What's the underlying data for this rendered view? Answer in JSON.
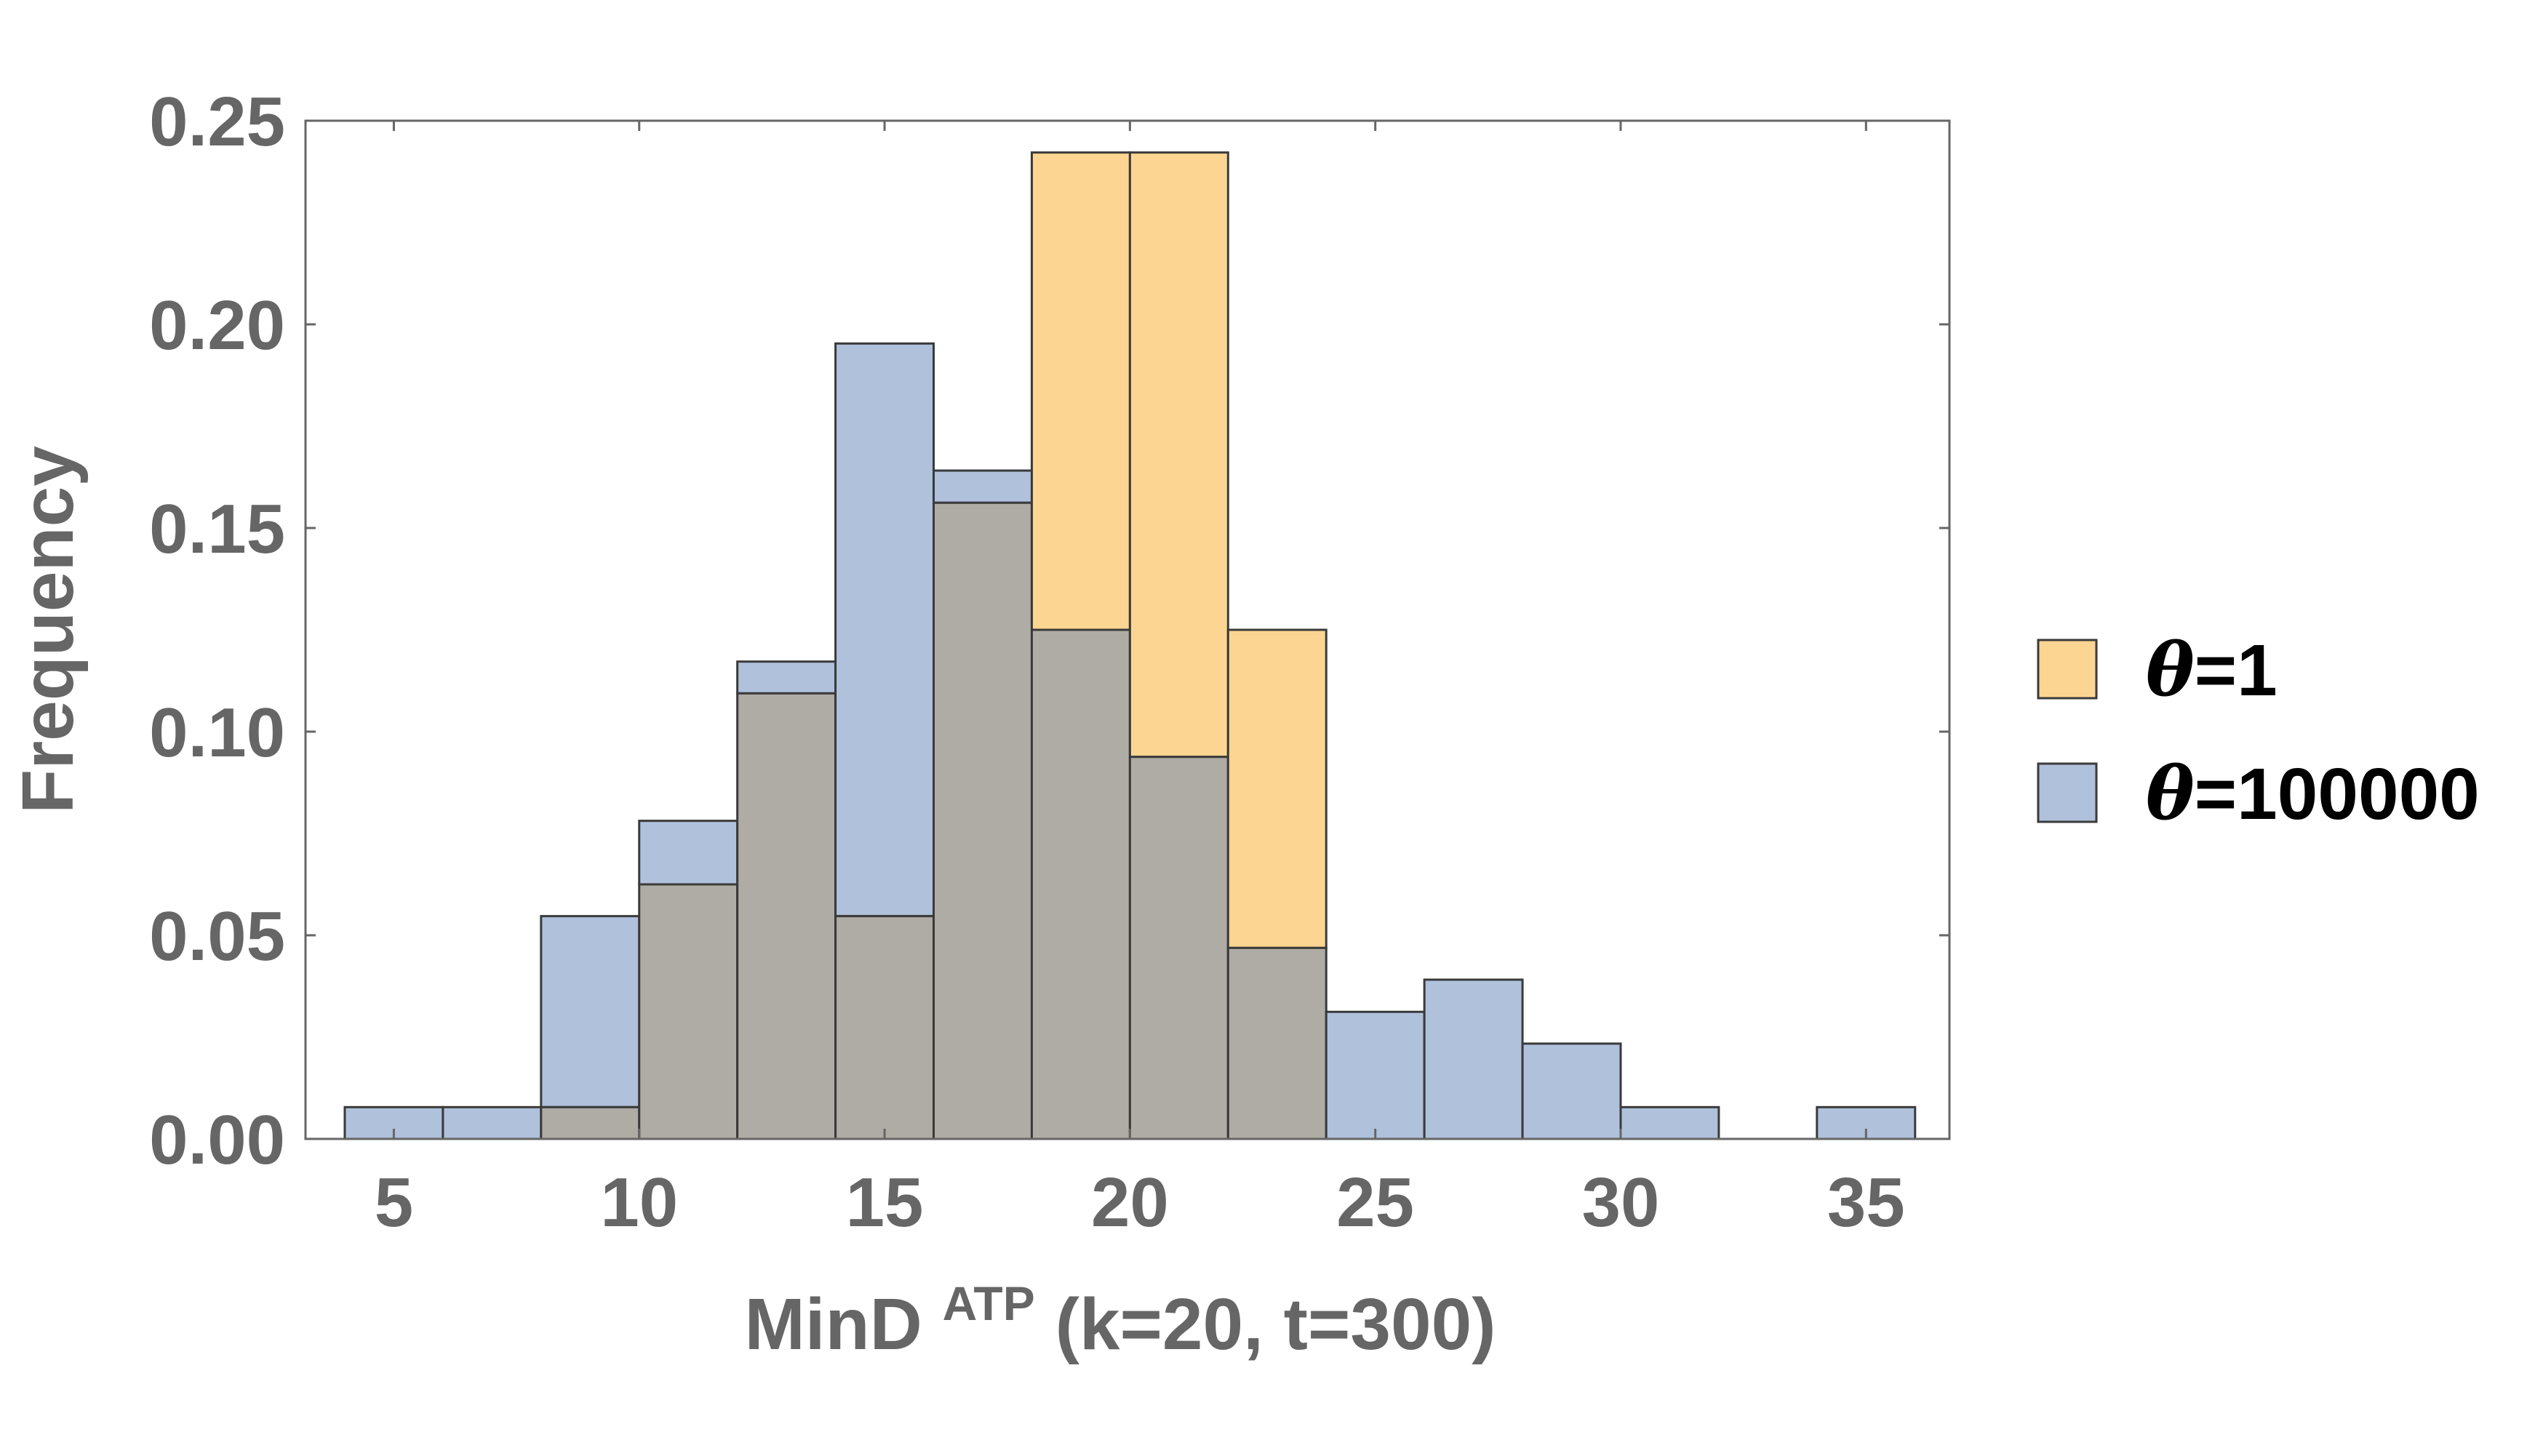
{
  "chart_data": {
    "type": "bar",
    "subtype": "overlapping-histogram",
    "xlabel": {
      "main": "MinD",
      "sup": "ATP",
      "rest": "(k=20, t=300)"
    },
    "ylabel": "Frequency",
    "xlim": [
      3.2,
      36.7
    ],
    "ylim": [
      0,
      0.25
    ],
    "xticks": [
      "5",
      "10",
      "15",
      "20",
      "25",
      "30",
      "35"
    ],
    "yticks": [
      "0.00",
      "0.05",
      "0.10",
      "0.15",
      "0.20",
      "0.25"
    ],
    "bin_edges": [
      4,
      6,
      8,
      10,
      12,
      14,
      16,
      18,
      20,
      22,
      24,
      26,
      28,
      30,
      32,
      34,
      36
    ],
    "series": [
      {
        "name": "θ=1",
        "legend_symbol": "θ",
        "legend_value": "=1",
        "color": "#fdd592",
        "values": [
          0,
          0,
          0.0078,
          0.0625,
          0.1094,
          0.0547,
          0.1562,
          0.2422,
          0.2422,
          0.125,
          0,
          0,
          0,
          0,
          0,
          0
        ]
      },
      {
        "name": "θ=100000",
        "legend_symbol": "θ",
        "legend_value": "=100000",
        "color": "#b0c1dc",
        "values": [
          0.0078,
          0.0078,
          0.0547,
          0.0781,
          0.1172,
          0.1953,
          0.1641,
          0.125,
          0.0938,
          0.0469,
          0.0312,
          0.0391,
          0.0234,
          0.0078,
          0,
          0.0078
        ]
      }
    ],
    "overlap_color": "#afaca5",
    "legend_position": "right",
    "grid": false
  }
}
